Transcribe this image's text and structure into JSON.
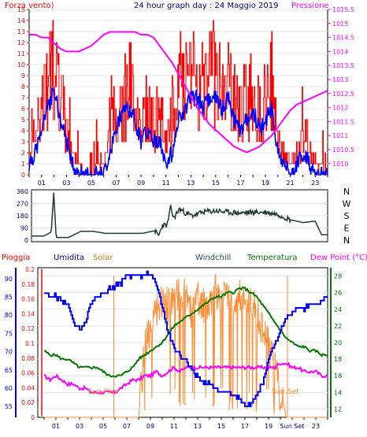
{
  "top": {
    "title": "24 hour graph day : 24 Maggio 2019",
    "left_label": "Forza vento)",
    "right_label": "Pressione",
    "wind_ticks": [
      "15",
      "14",
      "13",
      "12",
      "11",
      "10",
      "9",
      "8",
      "7",
      "6",
      "5",
      "4",
      "3",
      "2",
      "1",
      "0"
    ],
    "pressure_ticks": [
      "1015.5",
      "1015",
      "1014.5",
      "1014",
      "1013.5",
      "1013",
      "1012.5",
      "1012",
      "1011.5",
      "1011",
      "1010.5",
      "1010"
    ],
    "hour_ticks": [
      "01",
      "03",
      "05",
      "07",
      "09",
      "11",
      "13",
      "15",
      "17",
      "19",
      "21",
      "23"
    ]
  },
  "middle": {
    "dir_ticks": [
      "360",
      "270",
      "180",
      "90",
      "0"
    ],
    "compass": [
      "N",
      "W",
      "S",
      "E",
      "N"
    ]
  },
  "bottom": {
    "legend": {
      "rain": "Pioggia",
      "humidity": "Umidita",
      "solar": "Solar",
      "windchill": "Windchill",
      "temperature": "Temperatura",
      "dewpoint": "Dew Point (°C)"
    },
    "humidity_ticks": [
      "90",
      "85",
      "80",
      "75",
      "70",
      "65",
      "60",
      "55"
    ],
    "rain_ticks": [
      "0.2",
      "0.18",
      "0.16",
      "0.14",
      "0.12",
      "0.1",
      "0.08",
      "0.06",
      "0.04",
      "0.02",
      "0"
    ],
    "temp_ticks": [
      "28",
      "26",
      "24",
      "22",
      "20",
      "18",
      "16",
      "14",
      "12"
    ],
    "sun_rise": "Sun Rise",
    "sun_set": "Sun Set",
    "hour_ticks": [
      "01",
      "03",
      "05",
      "07",
      "09",
      "11",
      "13",
      "15",
      "17",
      "19",
      "Sun Set",
      "23"
    ]
  },
  "colors": {
    "wind": "#ff0000",
    "wind_avg": "#0000ff",
    "pressure": "#ff00ff",
    "direction": "#1e3c32",
    "humidity": "#0000ff",
    "solar": "#ff8c32",
    "temperature": "#007800",
    "dewpoint": "#ff00ff",
    "rain": "#ff0000"
  },
  "chart_data": [
    {
      "type": "line",
      "x": [
        0,
        0.5,
        1,
        1.5,
        2,
        2.5,
        3,
        3.5,
        4,
        4.5,
        5,
        5.5,
        6,
        6.5,
        7,
        7.5,
        8,
        8.5,
        9,
        9.5,
        10,
        10.5,
        11,
        11.5,
        12,
        12.5,
        13,
        13.5,
        14,
        14.5,
        15,
        15.5,
        16,
        16.5,
        17,
        17.5,
        18,
        18.5,
        19,
        19.5,
        20,
        20.5,
        21,
        21.5,
        22,
        22.5,
        23,
        23.5,
        24
      ],
      "series": [
        {
          "values": [
            2,
            4,
            6,
            9,
            10,
            7,
            4,
            2,
            1,
            0,
            0,
            1,
            1,
            4,
            6,
            7,
            8,
            7,
            5,
            6,
            5,
            5,
            3,
            5,
            7,
            8,
            9,
            9,
            8,
            9,
            9,
            8,
            9,
            7,
            6,
            7,
            8,
            6,
            7,
            9,
            3,
            2,
            1,
            2,
            3,
            2,
            1,
            1,
            0
          ]
        },
        {
          "values": [
            1,
            2,
            4,
            6,
            8,
            5,
            3,
            1,
            0,
            0,
            0,
            0,
            0,
            2,
            4,
            6,
            6,
            5,
            3,
            4,
            3,
            3,
            1,
            2,
            5,
            6,
            7,
            7,
            6,
            7,
            7,
            6,
            7,
            5,
            4,
            5,
            6,
            4,
            5,
            6,
            2,
            1,
            0,
            1,
            2,
            1,
            0,
            0,
            0
          ]
        },
        {
          "values": [
            1014.6,
            1014.6,
            1014.5,
            1014.5,
            1014.3,
            1014.1,
            1014.0,
            1014.0,
            1014.0,
            1014.1,
            1014.2,
            1014.4,
            1014.6,
            1014.7,
            1014.7,
            1014.7,
            1014.7,
            1014.7,
            1014.6,
            1014.6,
            1014.5,
            1014.2,
            1013.9,
            1013.6,
            1013.2,
            1012.8,
            1012.4,
            1012.0,
            1011.7,
            1011.4,
            1011.2,
            1011.0,
            1010.8,
            1010.6,
            1010.5,
            1010.4,
            1010.5,
            1010.6,
            1010.8,
            1011.0,
            1011.3,
            1011.6,
            1011.9,
            1012.1,
            1012.2,
            1012.3,
            1012.4,
            1012.5,
            1012.6
          ]
        }
      ],
      "ylim": [
        0,
        15
      ],
      "pressure_ylim": [
        1009.6,
        1015.5
      ]
    },
    {
      "type": "line",
      "x": [
        0,
        1,
        1.6,
        1.8,
        2,
        3,
        4,
        5,
        6,
        7,
        8,
        9,
        10,
        10.3,
        10.6,
        11,
        11.3,
        11.5,
        12,
        12.5,
        13,
        14,
        15,
        16,
        17,
        18,
        19,
        20,
        21,
        22,
        23,
        23.5,
        24
      ],
      "series": [
        {
          "values": [
            30,
            30,
            60,
            350,
            20,
            20,
            65,
            65,
            50,
            50,
            50,
            50,
            70,
            30,
            110,
            110,
            250,
            160,
            230,
            200,
            180,
            210,
            215,
            205,
            200,
            205,
            205,
            190,
            150,
            130,
            140,
            40,
            40
          ]
        }
      ],
      "ylim": [
        0,
        360
      ]
    },
    {
      "type": "line",
      "x": [
        0,
        0.5,
        1,
        1.5,
        2,
        2.5,
        3,
        3.5,
        4,
        4.5,
        5,
        5.5,
        6,
        6.5,
        7,
        7.5,
        8,
        8.5,
        9,
        9.5,
        10,
        10.5,
        11,
        11.5,
        12,
        12.5,
        13,
        13.5,
        14,
        14.5,
        15,
        15.5,
        16,
        16.5,
        17,
        17.5,
        18,
        18.5,
        19,
        19.5,
        20,
        20.5,
        21,
        21.5,
        22,
        22.5,
        23,
        23.5,
        24
      ],
      "series": [
        {
          "values": [
            86,
            85,
            85,
            84,
            83,
            78,
            76,
            78,
            84,
            85,
            86,
            87,
            88,
            89,
            91,
            91,
            91,
            91,
            91,
            88,
            82,
            75,
            71,
            69,
            68,
            65,
            63,
            62,
            61,
            60,
            59,
            59,
            58,
            57,
            55,
            56,
            58,
            62,
            68,
            72,
            76,
            79,
            81,
            82,
            82,
            83,
            83,
            84,
            85
          ]
        },
        {
          "values": [
            19,
            18.5,
            18.5,
            18,
            18,
            17.5,
            17,
            17,
            17,
            17,
            16.5,
            16,
            16,
            16,
            16.5,
            17,
            18,
            18.5,
            19,
            19.5,
            20,
            21,
            22,
            22.5,
            23,
            23.5,
            24,
            24.5,
            25,
            25.5,
            25.5,
            26,
            26,
            26.5,
            26.5,
            26,
            25.5,
            24.5,
            23.5,
            22.5,
            21.5,
            20.5,
            20,
            19.5,
            19.5,
            19,
            19,
            18.5,
            18.5
          ]
        },
        {
          "values": [
            16,
            15.5,
            16,
            15.5,
            15,
            15,
            14.5,
            14.5,
            14,
            14,
            14,
            14,
            14,
            14.5,
            15,
            15.5,
            15.5,
            16,
            16,
            16.5,
            16,
            16.5,
            17,
            16.5,
            17,
            17,
            17,
            17,
            17,
            17,
            17,
            17,
            17,
            17,
            17,
            17,
            17,
            17,
            17,
            17,
            17.5,
            17.5,
            17,
            17,
            16.5,
            16.5,
            16.5,
            16,
            16
          ]
        },
        {
          "values": [
            0,
            0,
            0,
            0,
            0,
            0,
            0,
            0,
            0,
            0,
            0,
            0,
            0,
            0,
            0,
            0,
            0,
            0.1,
            0.12,
            0.14,
            0.16,
            0.15,
            0.16,
            0.17,
            0.16,
            0.14,
            0.16,
            0.15,
            0.16,
            0.17,
            0.16,
            0.17,
            0.16,
            0.17,
            0.15,
            0.16,
            0.14,
            0.12,
            0.1,
            0.07,
            0.04,
            0,
            0,
            0,
            0,
            0,
            0,
            0,
            0
          ]
        }
      ],
      "humidity_ylim": [
        52,
        93
      ],
      "temp_ylim": [
        11,
        29
      ],
      "solar_ylim": [
        0,
        0.2
      ]
    }
  ]
}
